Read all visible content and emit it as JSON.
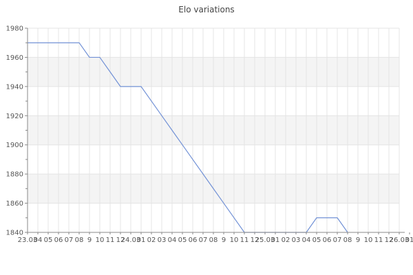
{
  "chart_data": {
    "type": "line",
    "title": "Elo variations",
    "xlabel": "",
    "ylabel": "",
    "ylim": [
      1840,
      1980
    ],
    "grid": true,
    "legend": "none",
    "y_tick_major_step": 20,
    "y_tick_minor_step": 10,
    "y_tick_labels": [
      "1980",
      "1960",
      "1940",
      "1920",
      "1900",
      "1880",
      "1860",
      "1840"
    ],
    "gray_bands_elo": [
      [
        1960,
        1940
      ],
      [
        1920,
        1900
      ],
      [
        1880,
        1860
      ]
    ],
    "x_tick_labels": [
      "23.03",
      "04",
      "05",
      "06",
      "07",
      "08",
      "9",
      "10",
      "11",
      "12",
      "24.03",
      "01",
      "02",
      "03",
      "04",
      "05",
      "06",
      "07",
      "08",
      "9",
      "10",
      "11",
      "12",
      "25.03",
      "01",
      "02",
      "03",
      "04",
      "05",
      "06",
      "07",
      "08",
      "9",
      "10",
      "11",
      "12",
      "26.03",
      "01"
    ],
    "series": [
      {
        "name": "Elo",
        "values": [
          1970,
          1970,
          1970,
          1970,
          1970,
          1970,
          1960,
          1960,
          1950,
          1940,
          1940,
          1940,
          1930,
          1920,
          1910,
          1900,
          1890,
          1880,
          1870,
          1860,
          1850,
          1840,
          1840,
          1840,
          1840,
          1840,
          1840,
          1840,
          1850,
          1850,
          1850,
          1840
        ]
      }
    ],
    "colors": {
      "line": "#7191d6",
      "band": "#f4f4f4",
      "grid": "#e4e4e4",
      "spine": "#888888",
      "tick_label": "#555555",
      "title": "#444444"
    }
  }
}
